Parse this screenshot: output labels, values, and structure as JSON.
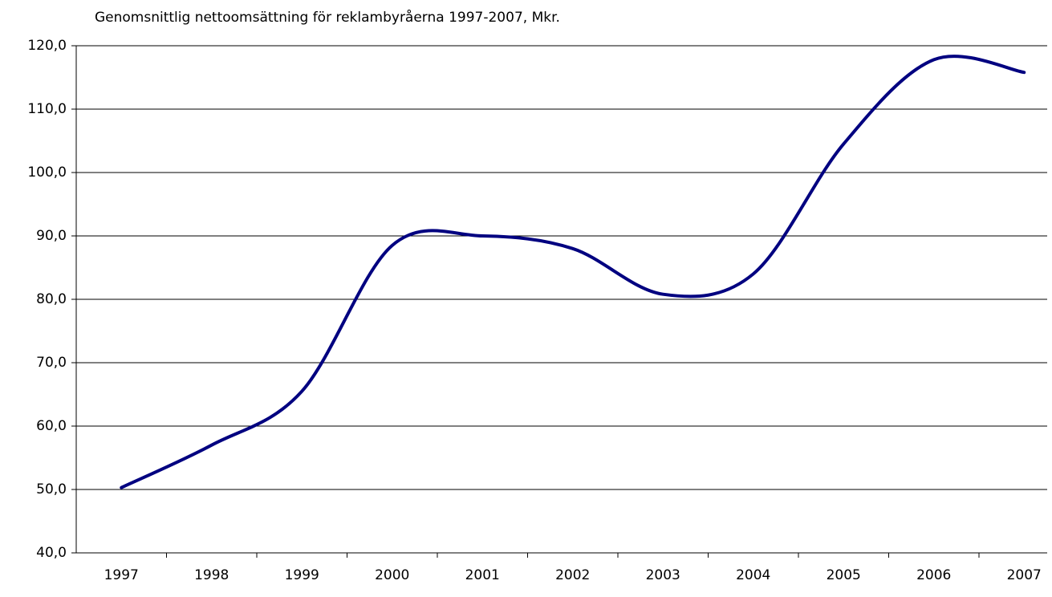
{
  "chart_data": {
    "type": "line",
    "title": "Genomsnittlig nettoomsättning för reklambyråerna 1997-2007, Mkr.",
    "categories": [
      "1997",
      "1998",
      "1999",
      "2000",
      "2001",
      "2002",
      "2003",
      "2004",
      "2005",
      "2006",
      "2007"
    ],
    "series": [
      {
        "name": "Nettoomsättning",
        "color": "#000080",
        "values": [
          50.3,
          57.0,
          65.5,
          88.5,
          90.0,
          88.0,
          80.8,
          84.0,
          104.5,
          117.8,
          115.8
        ]
      }
    ],
    "ylim": [
      40,
      120
    ],
    "yticks": [
      {
        "value": 40,
        "label": "40,0"
      },
      {
        "value": 50,
        "label": "50,0"
      },
      {
        "value": 60,
        "label": "60,0"
      },
      {
        "value": 70,
        "label": "70,0"
      },
      {
        "value": 80,
        "label": "80,0"
      },
      {
        "value": 90,
        "label": "90,0"
      },
      {
        "value": 100,
        "label": "100,0"
      },
      {
        "value": 110,
        "label": "110,0"
      },
      {
        "value": 120,
        "label": "120,0"
      }
    ],
    "grid": true
  }
}
